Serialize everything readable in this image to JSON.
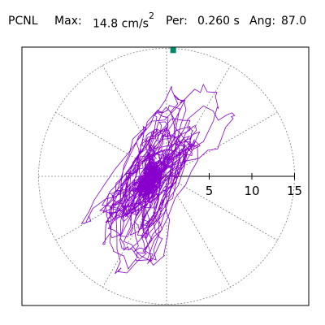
{
  "header": {
    "station": "PCNL",
    "max_label": "Max:",
    "max_value": "14.8 cm/s",
    "max_exponent": "2",
    "period_label": "Per:",
    "period_value": "0.260 s",
    "angle_label": "Ang:",
    "angle_value": "87.0"
  },
  "chart_data": {
    "type": "polar-particle-motion",
    "radial_range": [
      0,
      15
    ],
    "radial_tick_labels": [
      "5",
      "10",
      "15"
    ],
    "radial_ticks": [
      5,
      10,
      15
    ],
    "spoke_every_deg": 30,
    "max_amplitude": 14.8,
    "max_angle_deg": 87.0,
    "colors": {
      "trace": "#8800cc",
      "marker": "#008866",
      "grid": "#808080",
      "axis": "#000000"
    },
    "trace": {
      "center_offset": [
        -2.0,
        -0.5
      ],
      "points": 2400,
      "tilt_deg": 62,
      "note_core_radius": 2.8
    }
  }
}
